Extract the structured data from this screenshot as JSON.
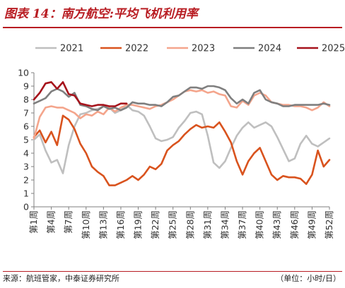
{
  "figure": {
    "title": "图表 14：南方航空:平均飞机利用率",
    "source": "来源：航班管家，中泰证券研究所",
    "unit": "（单位：小时/日）"
  },
  "chart_data": {
    "type": "line",
    "ylim": [
      0,
      10
    ],
    "yticks": [
      0,
      1,
      2,
      3,
      4,
      5,
      6,
      7,
      8,
      9,
      10
    ],
    "grid": false,
    "legend_position": "top",
    "x_tick_labels": [
      "第1周",
      "第4周",
      "第7周",
      "第10周",
      "第13周",
      "第16周",
      "第19周",
      "第22周",
      "第25周",
      "第28周",
      "第31周",
      "第34周",
      "第37周",
      "第40周",
      "第43周",
      "第46周",
      "第49周",
      "第52周"
    ],
    "x_tick_weeks": [
      1,
      4,
      7,
      10,
      13,
      16,
      19,
      22,
      25,
      28,
      31,
      34,
      37,
      40,
      43,
      46,
      49,
      52
    ],
    "series": [
      {
        "name": "2021",
        "color": "#bfbfbf",
        "weeks": [
          1,
          2,
          3,
          4,
          5,
          6,
          7,
          8,
          9,
          10,
          11,
          12,
          13,
          14,
          15,
          16,
          17,
          18,
          19,
          20,
          21,
          22,
          23,
          24,
          25,
          26,
          27,
          28,
          29,
          30,
          31,
          32,
          33,
          34,
          35,
          36,
          37,
          38,
          39,
          40,
          41,
          42,
          43,
          44,
          45,
          46,
          47,
          48,
          49,
          50,
          51,
          52
        ],
        "values": [
          5.0,
          5.4,
          4.2,
          3.3,
          3.5,
          2.5,
          4.6,
          6.0,
          6.9,
          7.0,
          7.2,
          7.3,
          7.5,
          7.4,
          7.0,
          7.2,
          7.6,
          7.2,
          7.1,
          6.8,
          6.0,
          5.1,
          4.9,
          5.0,
          5.2,
          5.9,
          6.4,
          7.0,
          7.1,
          6.9,
          5.3,
          3.3,
          2.9,
          3.4,
          4.4,
          5.3,
          5.9,
          6.3,
          5.9,
          6.1,
          6.3,
          6.0,
          5.2,
          4.3,
          3.4,
          3.6,
          4.7,
          5.3,
          4.7,
          4.5,
          4.8,
          5.1
        ]
      },
      {
        "name": "2022",
        "color": "#d9531e",
        "weeks": [
          1,
          2,
          3,
          4,
          5,
          6,
          7,
          8,
          9,
          10,
          11,
          12,
          13,
          14,
          15,
          16,
          17,
          18,
          19,
          20,
          21,
          22,
          23,
          24,
          25,
          26,
          27,
          28,
          29,
          30,
          31,
          32,
          33,
          34,
          35,
          36,
          37,
          38,
          39,
          40,
          41,
          42,
          43,
          44,
          45,
          46,
          47,
          48,
          49,
          50,
          51,
          52
        ],
        "values": [
          5.2,
          5.7,
          4.8,
          5.6,
          4.6,
          6.8,
          6.5,
          5.8,
          4.7,
          4.0,
          3.0,
          2.6,
          2.3,
          1.6,
          1.6,
          1.8,
          2.0,
          2.3,
          2.0,
          2.4,
          3.0,
          2.8,
          3.2,
          4.2,
          4.6,
          4.9,
          5.4,
          5.8,
          6.1,
          5.9,
          6.0,
          5.9,
          6.3,
          5.6,
          4.8,
          3.4,
          2.4,
          3.4,
          4.0,
          4.4,
          3.4,
          2.4,
          2.0,
          2.3,
          2.2,
          2.2,
          2.1,
          1.7,
          2.4,
          4.2,
          3.0,
          3.5
        ]
      },
      {
        "name": "2023",
        "color": "#f4a58c",
        "weeks": [
          1,
          2,
          3,
          4,
          5,
          6,
          7,
          8,
          9,
          10,
          11,
          12,
          13,
          14,
          15,
          16,
          17,
          18,
          19,
          20,
          21,
          22,
          23,
          24,
          25,
          26,
          27,
          28,
          29,
          30,
          31,
          32,
          33,
          34,
          35,
          36,
          37,
          38,
          39,
          40,
          41,
          42,
          43,
          44,
          45,
          46,
          47,
          48,
          49,
          50,
          51,
          52
        ],
        "values": [
          5.1,
          6.7,
          7.4,
          7.5,
          7.4,
          7.4,
          7.2,
          7.0,
          6.6,
          6.9,
          6.8,
          7.1,
          6.9,
          7.4,
          7.1,
          7.4,
          7.6,
          7.6,
          7.5,
          7.4,
          7.3,
          7.5,
          7.6,
          7.8,
          8.0,
          8.3,
          8.6,
          8.7,
          8.6,
          8.7,
          8.5,
          8.6,
          8.4,
          8.3,
          7.5,
          7.4,
          7.9,
          7.6,
          8.3,
          8.5,
          8.3,
          7.8,
          7.7,
          7.6,
          7.6,
          7.5,
          7.5,
          7.4,
          7.2,
          7.4,
          7.8,
          7.5
        ]
      },
      {
        "name": "2024",
        "color": "#7f7f7f",
        "weeks": [
          1,
          2,
          3,
          4,
          5,
          6,
          7,
          8,
          9,
          10,
          11,
          12,
          13,
          14,
          15,
          16,
          17,
          18,
          19,
          20,
          21,
          22,
          23,
          24,
          25,
          26,
          27,
          28,
          29,
          30,
          31,
          32,
          33,
          34,
          35,
          36,
          37,
          38,
          39,
          40,
          41,
          42,
          43,
          44,
          45,
          46,
          47,
          48,
          49,
          50,
          51,
          52
        ],
        "values": [
          7.7,
          7.9,
          8.1,
          8.6,
          8.8,
          8.6,
          8.2,
          8.5,
          7.6,
          7.5,
          7.3,
          7.2,
          7.5,
          7.3,
          7.4,
          7.2,
          7.4,
          7.8,
          7.7,
          7.7,
          7.6,
          7.6,
          7.5,
          7.8,
          8.2,
          8.3,
          8.6,
          8.9,
          8.9,
          8.8,
          9.0,
          9.0,
          8.9,
          8.7,
          8.1,
          7.7,
          8.0,
          7.7,
          8.5,
          8.7,
          8.0,
          7.8,
          7.7,
          7.5,
          7.5,
          7.6,
          7.6,
          7.6,
          7.6,
          7.6,
          7.7,
          7.6
        ]
      },
      {
        "name": "2025",
        "color": "#a6131c",
        "weeks": [
          1,
          2,
          3,
          4,
          5,
          6,
          7,
          8,
          9,
          10,
          11,
          12,
          13,
          14,
          15,
          16,
          17
        ],
        "values": [
          8.0,
          8.5,
          9.2,
          9.3,
          8.8,
          9.3,
          8.4,
          8.3,
          7.7,
          7.6,
          7.5,
          7.6,
          7.6,
          7.5,
          7.5,
          7.7,
          7.7
        ]
      }
    ]
  }
}
